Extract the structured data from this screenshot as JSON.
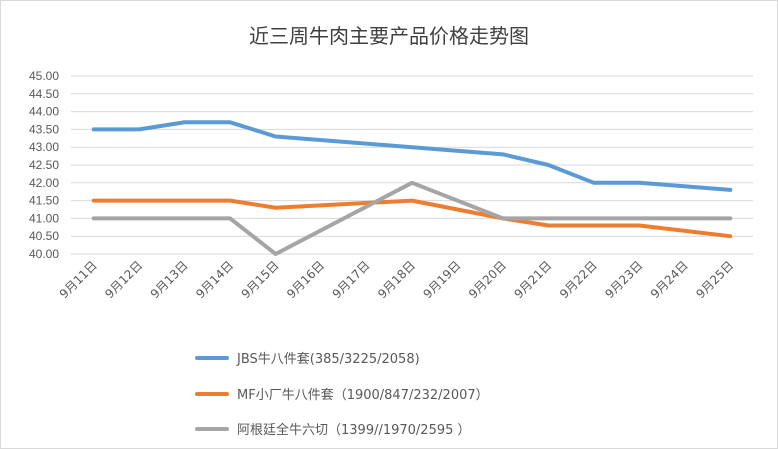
{
  "chart_data": {
    "type": "line",
    "title": "近三周牛肉主要产品价格走势图",
    "categories": [
      "9月11日",
      "9月12日",
      "9月13日",
      "9月14日",
      "9月15日",
      "9月16日",
      "9月17日",
      "9月18日",
      "9月19日",
      "9月20日",
      "9月21日",
      "9月22日",
      "9月23日",
      "9月24日",
      "9月25日"
    ],
    "ylim": [
      40.0,
      45.0
    ],
    "yticks": [
      "40.00",
      "40.50",
      "41.00",
      "41.50",
      "42.00",
      "42.50",
      "43.00",
      "43.50",
      "44.00",
      "44.50",
      "45.00"
    ],
    "grid": true,
    "legend_position": "bottom",
    "series": [
      {
        "name": "JBS牛八件套(385/3225/2058)",
        "color": "#5B9BD5",
        "values": [
          43.5,
          43.5,
          43.7,
          43.7,
          43.3,
          null,
          null,
          43.0,
          null,
          42.8,
          42.5,
          42.0,
          42.0,
          null,
          41.8
        ]
      },
      {
        "name": "MF小厂牛八件套（1900/847/232/2007）",
        "color": "#ED7D31",
        "values": [
          41.5,
          41.5,
          41.5,
          41.5,
          41.3,
          null,
          null,
          41.5,
          null,
          41.0,
          40.8,
          40.8,
          40.8,
          null,
          40.5
        ]
      },
      {
        "name": "阿根廷全牛六切（1399//1970/2595 ）",
        "color": "#A5A5A5",
        "values": [
          41.0,
          41.0,
          41.0,
          41.0,
          40.0,
          null,
          null,
          42.0,
          null,
          41.0,
          41.0,
          41.0,
          41.0,
          null,
          41.0
        ]
      }
    ]
  }
}
